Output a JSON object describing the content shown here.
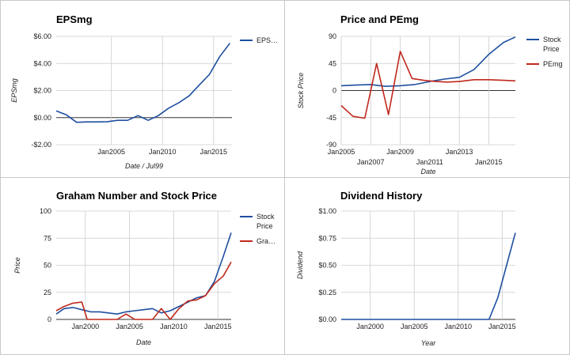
{
  "colors": {
    "blue": "#1f4fa0",
    "red": "#c1281c",
    "grid": "#cccccc",
    "baseline": "#333333"
  },
  "chart_data": [
    {
      "type": "line",
      "title": "EPSmg",
      "xlabel": "Date / Jul99",
      "ylabel": "EPSmg",
      "xlim": [
        1999.6,
        2016.8
      ],
      "ylim": [
        -2,
        6
      ],
      "yticks": [
        -2,
        0,
        2,
        4,
        6
      ],
      "ytick_labels": [
        "-$2.00",
        "$0.00",
        "$2.00",
        "$4.00",
        "$6.00"
      ],
      "xticks": [
        2005,
        2010,
        2015
      ],
      "xtick_labels": [
        "Jan2005",
        "Jan2010",
        "Jan2015"
      ],
      "grid": true,
      "legend_position": "right",
      "series": [
        {
          "name": "EPS…",
          "color": "#1f4fa0",
          "x": [
            1999.6,
            2000.6,
            2001.6,
            2002.6,
            2003.6,
            2004.6,
            2005.6,
            2006.6,
            2007.6,
            2008.6,
            2009.6,
            2010.6,
            2011.6,
            2012.6,
            2013.6,
            2014.6,
            2015.6,
            2016.6
          ],
          "values": [
            0.5,
            0.2,
            -0.35,
            -0.32,
            -0.32,
            -0.3,
            -0.2,
            -0.2,
            0.15,
            -0.2,
            0.15,
            0.7,
            1.1,
            1.6,
            2.4,
            3.2,
            4.5,
            5.5
          ]
        }
      ]
    },
    {
      "type": "line",
      "title": "Price and PEmg",
      "xlabel": "Date",
      "ylabel": "Stock Price",
      "xlim": [
        2005,
        2016.8
      ],
      "ylim": [
        -90,
        90
      ],
      "yticks": [
        -90,
        -45,
        0,
        45,
        90
      ],
      "ytick_labels": [
        "-90",
        "-45",
        "0",
        "45",
        "90"
      ],
      "xticks_top": [
        2005,
        2009,
        2013
      ],
      "xtick_labels_top": [
        "Jan2005",
        "Jan2009",
        "Jan2013"
      ],
      "xticks_bottom": [
        2007,
        2011,
        2015
      ],
      "xtick_labels_bottom": [
        "Jan2007",
        "Jan2011",
        "Jan2015"
      ],
      "grid": true,
      "legend_position": "right",
      "series": [
        {
          "name": "Stock Price",
          "color": "#1f4fa0",
          "x": [
            2005,
            2006,
            2007,
            2008,
            2009,
            2010,
            2011,
            2012,
            2013,
            2014,
            2015,
            2016,
            2016.8
          ],
          "values": [
            8,
            9,
            10,
            7,
            8,
            10,
            15,
            19,
            22,
            35,
            60,
            80,
            89
          ]
        },
        {
          "name": "PEmg",
          "color": "#c1281c",
          "x": [
            2005,
            2005.8,
            2006.6,
            2007.4,
            2008.2,
            2009.0,
            2009.8,
            2010.6,
            2011.4,
            2012.2,
            2013.0,
            2014.0,
            2015.0,
            2016.0,
            2016.8
          ],
          "values": [
            -25,
            -43,
            -46,
            45,
            -40,
            65,
            20,
            17,
            15,
            14,
            15,
            18,
            18,
            17,
            16
          ]
        }
      ]
    },
    {
      "type": "line",
      "title": "Graham Number and Stock Price",
      "xlabel": "Date",
      "ylabel": "Price",
      "xlim": [
        1996.7,
        2016.5
      ],
      "ylim": [
        0,
        100
      ],
      "yticks": [
        0,
        25,
        50,
        75,
        100
      ],
      "ytick_labels": [
        "0",
        "25",
        "50",
        "75",
        "100"
      ],
      "xticks": [
        2000,
        2005,
        2010,
        2015
      ],
      "xtick_labels": [
        "Jan2000",
        "Jan2005",
        "Jan2010",
        "Jan2015"
      ],
      "grid": true,
      "legend_position": "right",
      "series": [
        {
          "name": "Stock Price",
          "color": "#1f4fa0",
          "x": [
            1996.7,
            1997.6,
            1998.6,
            1999.6,
            2000.6,
            2001.6,
            2002.6,
            2003.6,
            2004.6,
            2005.6,
            2006.6,
            2007.6,
            2008.6,
            2009.6,
            2010.6,
            2011.6,
            2012.6,
            2013.6,
            2014.6,
            2015.6,
            2016.5
          ],
          "values": [
            5,
            10,
            11,
            9,
            7,
            7,
            6,
            5,
            7,
            8,
            9,
            10,
            6,
            8,
            12,
            16,
            20,
            22,
            35,
            58,
            80
          ]
        },
        {
          "name": "Gra…",
          "color": "#c1281c",
          "x": [
            1996.7,
            1997.6,
            1998.6,
            1999.6,
            2000.2,
            2001.6,
            2002.6,
            2003.6,
            2004.6,
            2005.6,
            2006.6,
            2007.6,
            2008.6,
            2009.6,
            2010.6,
            2011.6,
            2012.6,
            2013.6,
            2014.6,
            2015.6,
            2016.5
          ],
          "values": [
            8,
            12,
            15,
            16,
            0,
            0,
            0,
            0,
            5,
            0,
            0,
            0,
            10,
            0,
            10,
            17,
            18,
            22,
            33,
            40,
            53
          ]
        }
      ]
    },
    {
      "type": "line",
      "title": "Dividend History",
      "xlabel": "Year",
      "ylabel": "Dividend",
      "xlim": [
        1996.7,
        2016.5
      ],
      "ylim": [
        0,
        1
      ],
      "yticks": [
        0,
        0.25,
        0.5,
        0.75,
        1
      ],
      "ytick_labels": [
        "$0.00",
        "$0.25",
        "$0.50",
        "$0.75",
        "$1.00"
      ],
      "xticks": [
        2000,
        2005,
        2010,
        2015
      ],
      "xtick_labels": [
        "Jan2000",
        "Jan2005",
        "Jan2010",
        "Jan2015"
      ],
      "grid": true,
      "legend_position": "none",
      "series": [
        {
          "name": "",
          "color": "#1f4fa0",
          "x": [
            1996.7,
            2013.5,
            2014.5,
            2015.5,
            2016.5
          ],
          "values": [
            0,
            0,
            0.2,
            0.5,
            0.8
          ]
        }
      ]
    }
  ]
}
